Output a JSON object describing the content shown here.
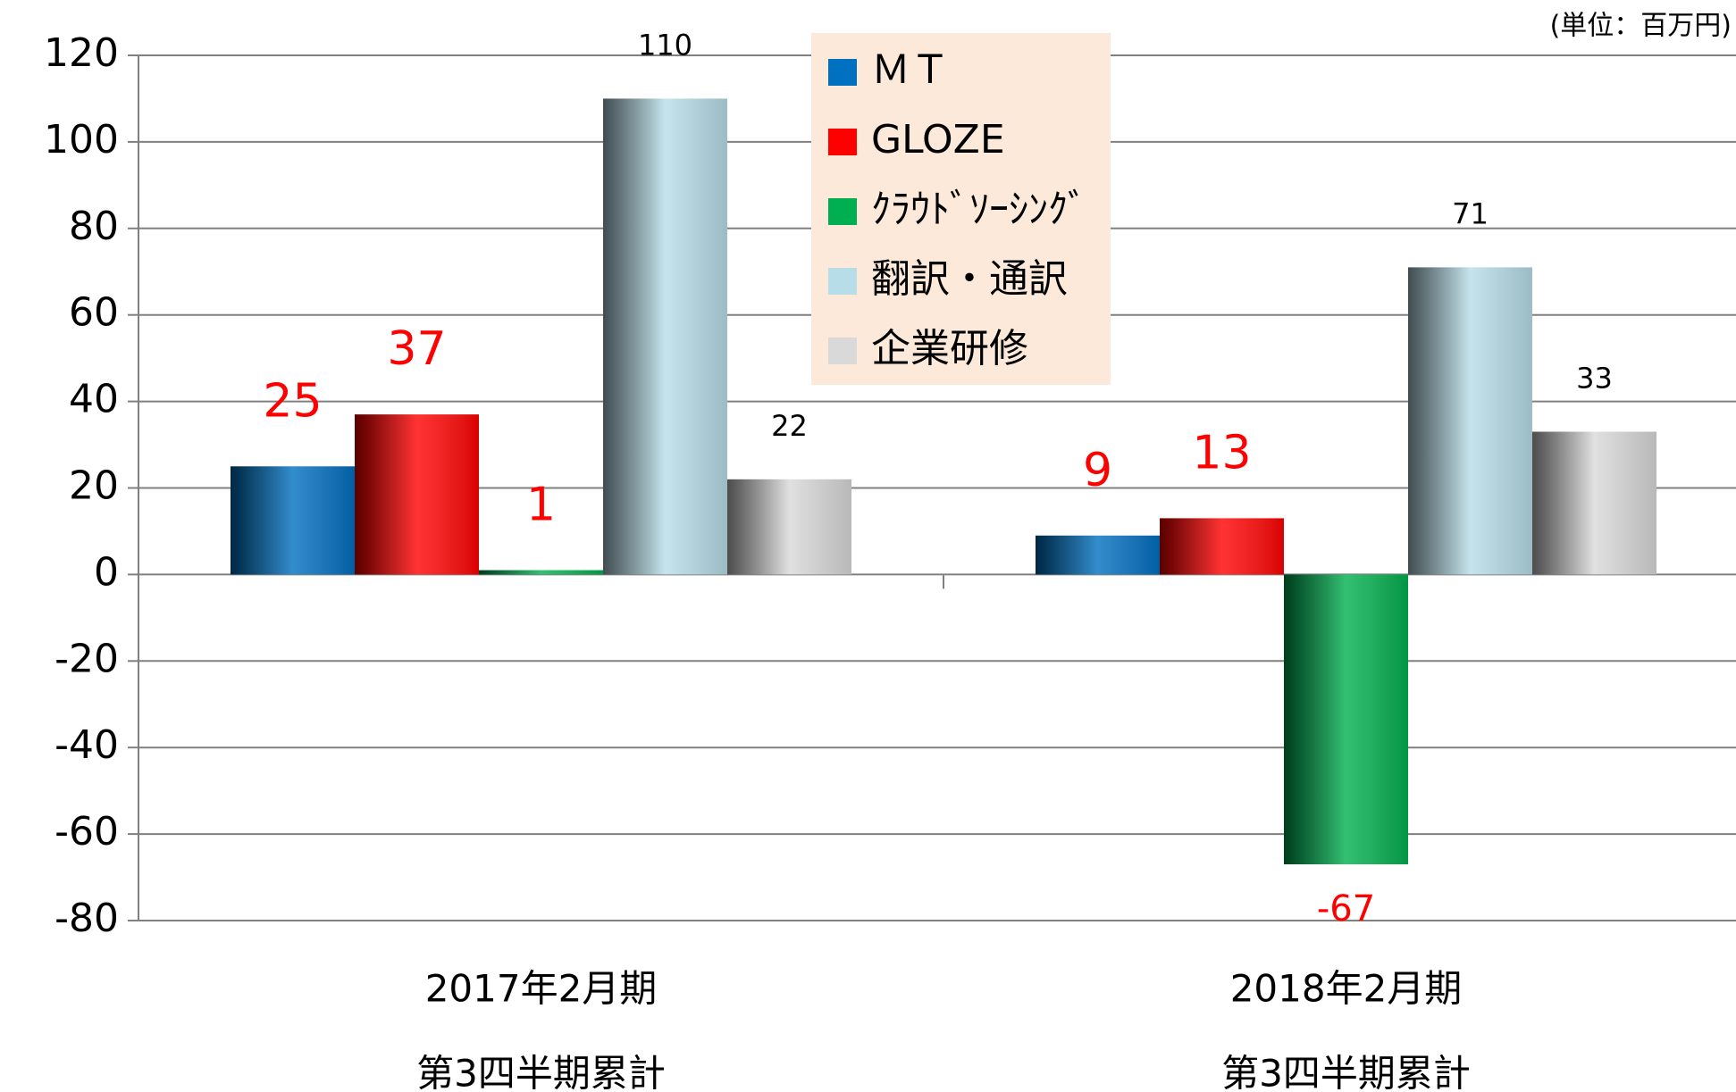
{
  "chart_data": {
    "type": "bar",
    "unit_note": "(単位：百万円)",
    "categories": [
      [
        "2017年2月期",
        "第3四半期累計"
      ],
      [
        "2018年2月期",
        "第3四半期累計"
      ]
    ],
    "series": [
      {
        "name": "ＭＴ",
        "color": "#0070c0",
        "label_color": "#ff0000",
        "values": [
          25,
          9
        ]
      },
      {
        "name": "GLOZE",
        "color": "#ff0000",
        "label_color": "#ff0000",
        "values": [
          37,
          13
        ]
      },
      {
        "name": "ｸﾗｳﾄﾞｿｰｼﾝｸﾞ",
        "color": "#00b050",
        "label_color": "#ff0000",
        "values": [
          1,
          -67
        ]
      },
      {
        "name": "翻訳・通訳",
        "color": "#b7dde8",
        "label_color": "#000000",
        "values": [
          110,
          71
        ]
      },
      {
        "name": "企業研修",
        "color": "#d9d9d9",
        "label_color": "#000000",
        "values": [
          22,
          33
        ]
      }
    ],
    "ylim": [
      -80,
      120
    ],
    "yticks": [
      -80,
      -60,
      -40,
      -20,
      0,
      20,
      40,
      60,
      80,
      100,
      120
    ],
    "grid": true,
    "legend_background": "#fde9d9"
  }
}
